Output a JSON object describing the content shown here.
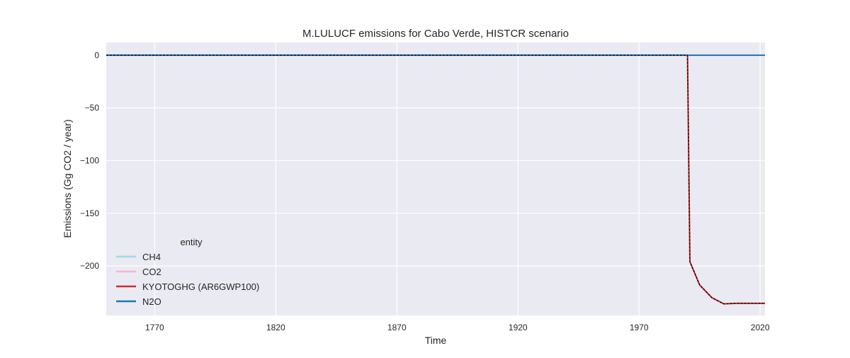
{
  "chart_data": {
    "type": "line",
    "title": "M.LULUCF emissions for Cabo Verde, HISTCR scenario",
    "xlabel": "Time",
    "ylabel": "Emissions (Gg CO2 / year)",
    "xlim": [
      1750,
      2022
    ],
    "ylim": [
      -247,
      12
    ],
    "x_ticks": [
      1770,
      1820,
      1870,
      1920,
      1970,
      2020
    ],
    "y_ticks": [
      0,
      -50,
      -100,
      -150,
      -200
    ],
    "grid": true,
    "background": "#eaeaf2",
    "legend": {
      "title": "entity",
      "placement": "lower-left"
    },
    "series": [
      {
        "name": "CH4",
        "color": "#9edae5",
        "style": "solid",
        "x": [
          1750,
          2022
        ],
        "values": [
          0,
          0
        ]
      },
      {
        "name": "CO2",
        "color": "#f7b6d2",
        "style": "solid",
        "x": [
          1750,
          1990,
          1991,
          1995,
          2000,
          2005,
          2010,
          2015,
          2020,
          2022
        ],
        "values": [
          0,
          0,
          -196,
          -218,
          -230,
          -236,
          -235.5,
          -235.5,
          -235.5,
          -235.5
        ]
      },
      {
        "name": "KYOTOGHG (AR6GWP100)",
        "color": "#c8302f",
        "style": "solid",
        "x": [
          1750,
          1990,
          1991,
          1995,
          2000,
          2005,
          2010,
          2015,
          2020,
          2022
        ],
        "values": [
          0,
          0,
          -196,
          -218,
          -230,
          -236,
          -235.5,
          -235.5,
          -235.5,
          -235.5
        ]
      },
      {
        "name": "N2O",
        "color": "#1f77b4",
        "style": "solid",
        "x": [
          1750,
          2022
        ],
        "values": [
          0,
          0
        ]
      },
      {
        "name": "",
        "color": "#000000",
        "style": "dashed",
        "legend": false,
        "x": [
          1750,
          1990,
          1991,
          1995,
          2000,
          2005,
          2010,
          2015,
          2020,
          2022
        ],
        "values": [
          0,
          0,
          -196,
          -218,
          -230,
          -236,
          -235.5,
          -235.5,
          -235.5,
          -235.5
        ]
      }
    ]
  }
}
